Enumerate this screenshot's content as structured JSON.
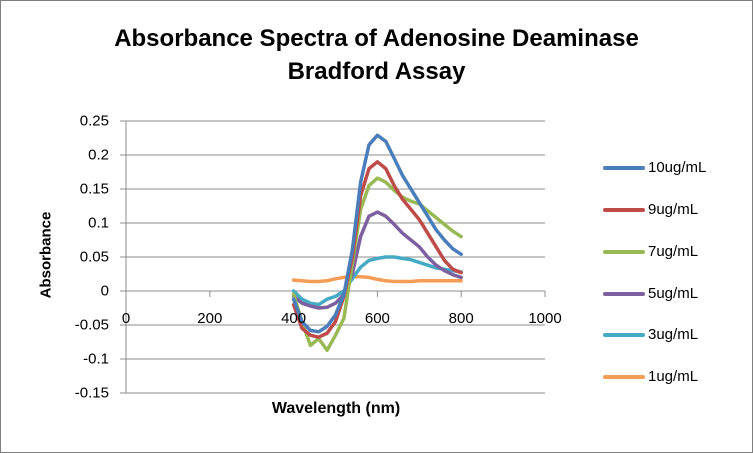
{
  "chart_data": {
    "type": "line",
    "title": "Absorbance Spectra of Adenosine Deaminase Bradford Assay",
    "title_lines": [
      "Absorbance Spectra of Adenosine Deaminase",
      "Bradford Assay"
    ],
    "xlabel": "Wavelength (nm)",
    "ylabel": "Absorbance",
    "xlim": [
      0,
      1000
    ],
    "ylim": [
      -0.15,
      0.25
    ],
    "xticks": [
      "0",
      "200",
      "400",
      "600",
      "800",
      "1000"
    ],
    "yticks": [
      "0.25",
      "0.2",
      "0.15",
      "0.1",
      "0.05",
      "0",
      "-0.05",
      "-0.1",
      "-0.15"
    ],
    "grid": "horizontal",
    "legend_position": "right",
    "x": [
      400,
      420,
      440,
      460,
      480,
      500,
      520,
      540,
      560,
      580,
      600,
      620,
      640,
      660,
      680,
      700,
      720,
      740,
      760,
      780,
      800
    ],
    "series": [
      {
        "name": "10ug/mL",
        "color": "#4a7ebb",
        "values": [
          -0.012,
          -0.045,
          -0.058,
          -0.06,
          -0.052,
          -0.035,
          -0.005,
          0.06,
          0.16,
          0.215,
          0.229,
          0.22,
          0.195,
          0.17,
          0.15,
          0.13,
          0.11,
          0.09,
          0.075,
          0.062,
          0.054
        ]
      },
      {
        "name": "9ug/mL",
        "color": "#be4b48",
        "values": [
          -0.02,
          -0.055,
          -0.065,
          -0.068,
          -0.062,
          -0.045,
          -0.008,
          0.05,
          0.14,
          0.18,
          0.19,
          0.18,
          0.155,
          0.135,
          0.12,
          0.105,
          0.085,
          0.065,
          0.045,
          0.032,
          0.027
        ]
      },
      {
        "name": "7ug/mL",
        "color": "#98b954",
        "values": [
          -0.005,
          -0.045,
          -0.08,
          -0.07,
          -0.087,
          -0.065,
          -0.04,
          0.04,
          0.12,
          0.155,
          0.166,
          0.16,
          0.148,
          0.138,
          0.132,
          0.128,
          0.118,
          0.108,
          0.098,
          0.088,
          0.08
        ]
      },
      {
        "name": "5ug/mL",
        "color": "#7d60a0",
        "values": [
          -0.008,
          -0.018,
          -0.022,
          -0.025,
          -0.024,
          -0.018,
          -0.005,
          0.025,
          0.08,
          0.11,
          0.116,
          0.11,
          0.098,
          0.085,
          0.075,
          0.065,
          0.05,
          0.038,
          0.03,
          0.024,
          0.02
        ]
      },
      {
        "name": "3ug/mL",
        "color": "#46aac5",
        "values": [
          0.0,
          -0.012,
          -0.018,
          -0.02,
          -0.012,
          -0.008,
          0.0,
          0.018,
          0.035,
          0.045,
          0.048,
          0.05,
          0.05,
          0.048,
          0.046,
          0.042,
          0.038,
          0.034,
          0.032,
          0.03,
          0.028
        ]
      },
      {
        "name": "1ug/mL",
        "color": "#f59d56",
        "values": [
          0.016,
          0.015,
          0.014,
          0.014,
          0.015,
          0.018,
          0.02,
          0.021,
          0.021,
          0.02,
          0.017,
          0.015,
          0.014,
          0.014,
          0.014,
          0.015,
          0.015,
          0.015,
          0.015,
          0.015,
          0.015
        ]
      }
    ]
  }
}
